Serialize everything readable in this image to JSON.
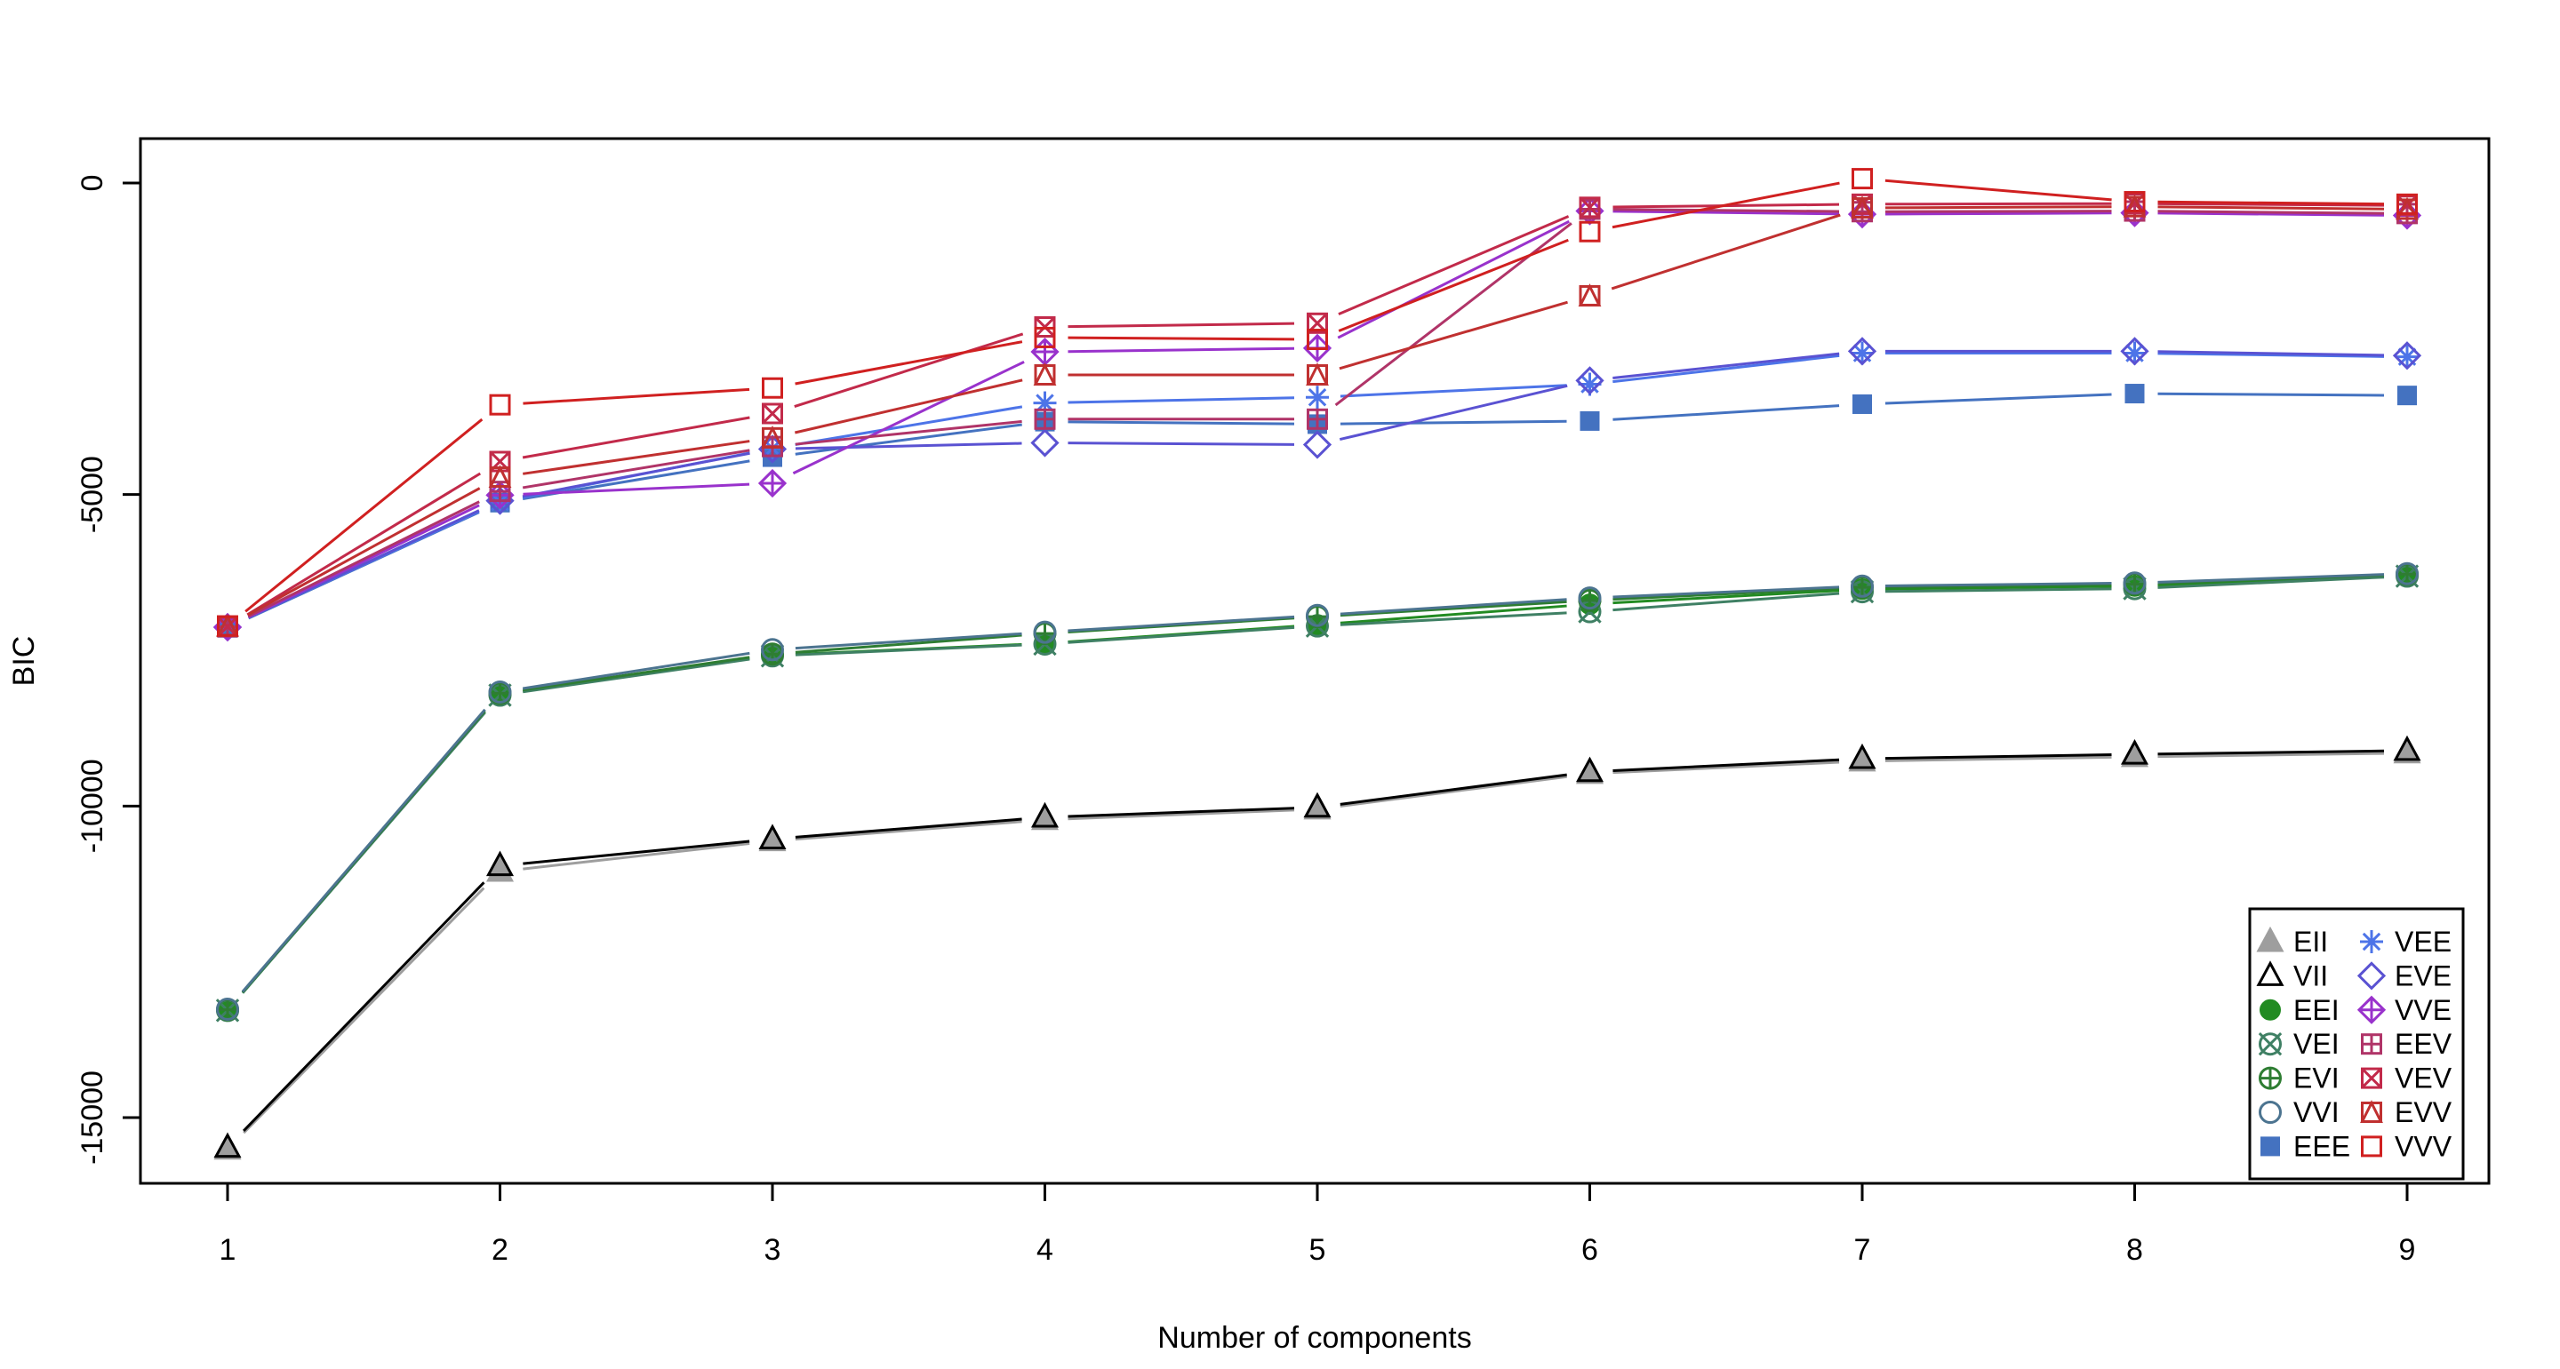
{
  "chart_data": {
    "type": "line",
    "title": "",
    "xlabel": "Number of components",
    "ylabel": "BIC",
    "x": [
      1,
      2,
      3,
      4,
      5,
      6,
      7,
      8,
      9
    ],
    "x_ticks": [
      "1",
      "2",
      "3",
      "4",
      "5",
      "6",
      "7",
      "8",
      "9"
    ],
    "y_ticks": [
      {
        "value": 0,
        "label": "0"
      },
      {
        "value": -5000,
        "label": "-5000"
      },
      {
        "value": -10000,
        "label": "-10000"
      },
      {
        "value": -15000,
        "label": "-15000"
      }
    ],
    "xlim": [
      0.68,
      9.32
    ],
    "ylim": [
      -16060,
      713
    ],
    "grid": false,
    "line_style": "solid-with-point-gaps",
    "legend": {
      "position": "bottom-right",
      "columns": [
        [
          "EII",
          "VII",
          "EEI",
          "VEI",
          "EVI",
          "VVI",
          "EEE"
        ],
        [
          "VEE",
          "EVE",
          "VVE",
          "EEV",
          "VEV",
          "EVV",
          "VVV"
        ]
      ]
    },
    "series": [
      {
        "name": "EII",
        "marker": "triangle-filled",
        "color": "#9E9E9E",
        "values": [
          -15510,
          -11050,
          -10560,
          -10220,
          -10050,
          -9480,
          -9280,
          -9210,
          -9150
        ]
      },
      {
        "name": "VII",
        "marker": "triangle-open",
        "color": "#000000",
        "values": [
          -15480,
          -10960,
          -10530,
          -10180,
          -10020,
          -9450,
          -9240,
          -9170,
          -9110
        ]
      },
      {
        "name": "EEI",
        "marker": "circle-filled",
        "color": "#228B22",
        "values": [
          -13280,
          -8210,
          -7580,
          -7390,
          -7090,
          -6760,
          -6520,
          -6470,
          -6290
        ]
      },
      {
        "name": "VEI",
        "marker": "circle-x",
        "color": "#3F8064",
        "values": [
          -13280,
          -8220,
          -7590,
          -7400,
          -7110,
          -6880,
          -6560,
          -6510,
          -6310
        ]
      },
      {
        "name": "EVI",
        "marker": "circle-plus",
        "color": "#2E7D32",
        "values": [
          -13270,
          -8190,
          -7560,
          -7230,
          -6960,
          -6700,
          -6490,
          -6440,
          -6280
        ]
      },
      {
        "name": "VVI",
        "marker": "circle-open",
        "color": "#4C7490",
        "values": [
          -13260,
          -8170,
          -7490,
          -7210,
          -6940,
          -6660,
          -6470,
          -6420,
          -6270
        ]
      },
      {
        "name": "EEE",
        "marker": "square-filled",
        "color": "#4472C0",
        "values": [
          -7140,
          -5130,
          -4400,
          -3830,
          -3870,
          -3820,
          -3550,
          -3380,
          -3410
        ]
      },
      {
        "name": "VEE",
        "marker": "asterisk",
        "color": "#4D74E8",
        "values": [
          -7130,
          -5120,
          -4260,
          -3530,
          -3440,
          -3230,
          -2730,
          -2730,
          -2790
        ]
      },
      {
        "name": "EVE",
        "marker": "diamond-open",
        "color": "#5A52D2",
        "values": [
          -7130,
          -5100,
          -4270,
          -4170,
          -4200,
          -3170,
          -2700,
          -2700,
          -2770
        ]
      },
      {
        "name": "VVE",
        "marker": "diamond-plus",
        "color": "#9932CC",
        "values": [
          -7130,
          -5010,
          -4820,
          -2710,
          -2650,
          -450,
          -500,
          -480,
          -520
        ]
      },
      {
        "name": "EEV",
        "marker": "square-plus",
        "color": "#B03468",
        "values": [
          -7120,
          -4950,
          -4230,
          -3790,
          -3790,
          -420,
          -460,
          -450,
          -490
        ]
      },
      {
        "name": "VEV",
        "marker": "square-x",
        "color": "#C22A4A",
        "values": [
          -7120,
          -4470,
          -3700,
          -2310,
          -2250,
          -390,
          -340,
          -330,
          -360
        ]
      },
      {
        "name": "EVV",
        "marker": "square-triangle",
        "color": "#C03030",
        "values": [
          -7110,
          -4720,
          -4090,
          -3080,
          -3080,
          -1810,
          -400,
          -380,
          -420
        ]
      },
      {
        "name": "VVV",
        "marker": "square-open",
        "color": "#D02020",
        "values": [
          -7110,
          -3560,
          -3290,
          -2480,
          -2510,
          -780,
          70,
          -300,
          -340
        ]
      }
    ]
  }
}
